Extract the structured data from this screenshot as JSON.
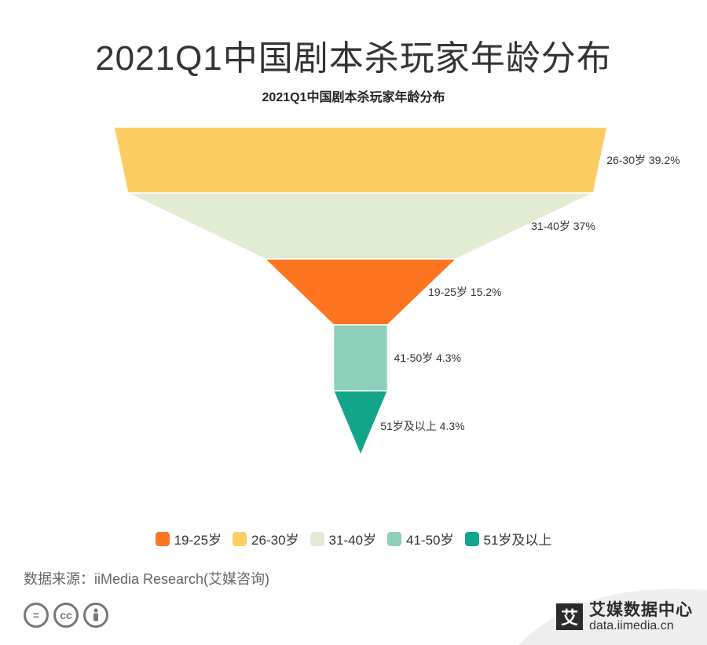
{
  "header": {
    "title": "2021Q1中国剧本杀玩家年龄分布"
  },
  "chart_data": {
    "type": "funnel",
    "title": "2021Q1中国剧本杀玩家年龄分布",
    "unit": "%",
    "order": "descending",
    "series": [
      {
        "name": "26-30岁",
        "value": 39.2,
        "label": "26-30岁 39.2%",
        "color": "#FCCD62"
      },
      {
        "name": "31-40岁",
        "value": 37,
        "label": "31-40岁 37%",
        "color": "#E2EBD4"
      },
      {
        "name": "19-25岁",
        "value": 15.2,
        "label": "19-25岁 15.2%",
        "color": "#FF7420"
      },
      {
        "name": "41-50岁",
        "value": 4.3,
        "label": "41-50岁 4.3%",
        "color": "#8ECFBA"
      },
      {
        "name": "51岁及以上",
        "value": 4.3,
        "label": "51岁及以上 4.3%",
        "color": "#12A58A"
      }
    ],
    "legend": {
      "placement": "bottom",
      "items": [
        {
          "label": "19-25岁",
          "color": "#FF7420"
        },
        {
          "label": "26-30岁",
          "color": "#FCCD62"
        },
        {
          "label": "31-40岁",
          "color": "#E2EBD4"
        },
        {
          "label": "41-50岁",
          "color": "#8ECFBA"
        },
        {
          "label": "51岁及以上",
          "color": "#12A58A"
        }
      ]
    }
  },
  "footer": {
    "source": "数据来源：iiMedia Research(艾媒咨询)",
    "brand_mark": "艾",
    "brand_name": "艾媒数据中心",
    "brand_url": "data.iimedia.cn",
    "license_icons": [
      "equals-icon",
      "cc-icon",
      "person-icon"
    ]
  }
}
